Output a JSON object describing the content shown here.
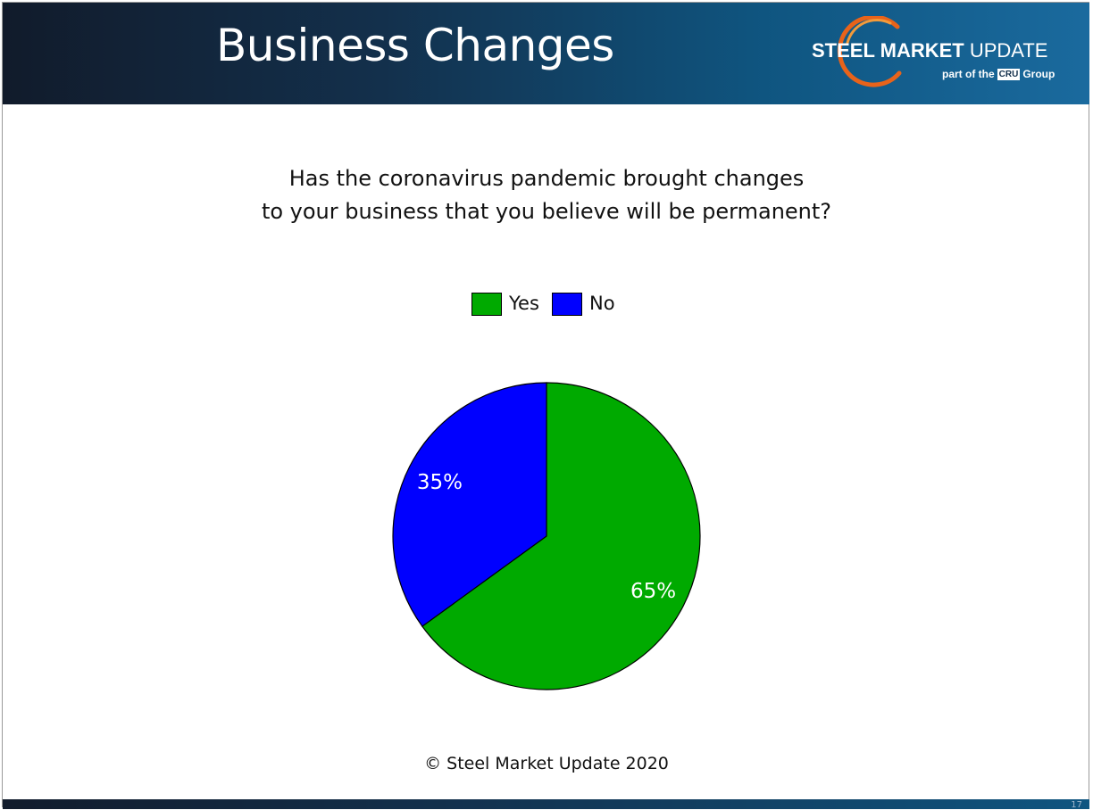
{
  "slide": {
    "title": "Business Changes",
    "question_line1": "Has the coronavirus pandemic brought changes",
    "question_line2": "to your business that you believe will be permanent?",
    "footer": "© Steel Market Update 2020",
    "page_number": "17"
  },
  "logo": {
    "name_bold": "STEEL MARKET",
    "name_regular": "UPDATE",
    "sub_prefix": "part of the",
    "sub_box": "CRU",
    "sub_suffix": "Group"
  },
  "colors": {
    "yes": "#00aa00",
    "no": "#0000ff",
    "header_dark": "#111b2b",
    "header_light": "#1a6a9e",
    "logo_accent": "#e8631a"
  },
  "chart_data": {
    "type": "pie",
    "categories": [
      "Yes",
      "No"
    ],
    "values": [
      65,
      35
    ],
    "data_labels": [
      "65%",
      "35%"
    ],
    "legend": [
      "Yes",
      "No"
    ],
    "legend_position": "top"
  }
}
